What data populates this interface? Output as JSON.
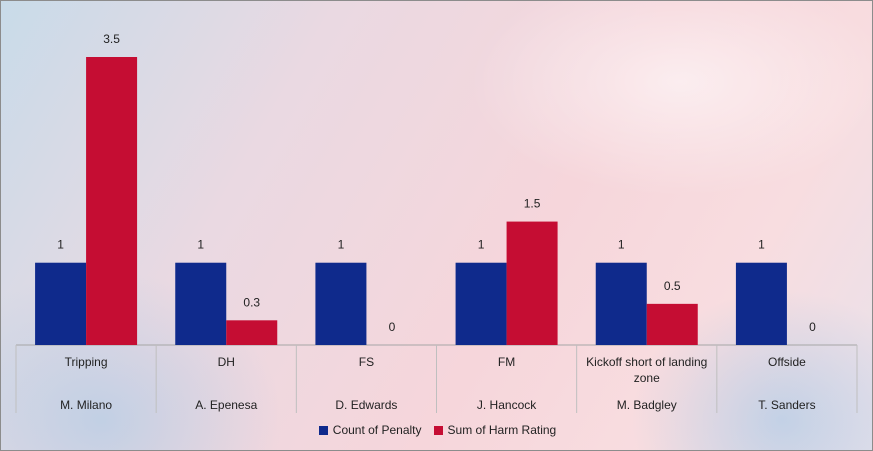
{
  "chart_data": {
    "type": "bar",
    "categories": [
      {
        "penalty": "Tripping",
        "player": "M. Milano"
      },
      {
        "penalty": "DH",
        "player": "A. Epenesa"
      },
      {
        "penalty": "FS",
        "player": "D. Edwards"
      },
      {
        "penalty": "FM",
        "player": "J. Hancock"
      },
      {
        "penalty": "Kickoff short of landing zone",
        "player": "M. Badgley"
      },
      {
        "penalty": "Offside",
        "player": "T. Sanders"
      }
    ],
    "series": [
      {
        "name": "Count of Penalty",
        "values": [
          1,
          1,
          1,
          1,
          1,
          1
        ],
        "color": "#0f2a8c"
      },
      {
        "name": "Sum of Harm Rating",
        "values": [
          3.5,
          0.3,
          0,
          1.5,
          0.5,
          0
        ],
        "color": "#c50d33"
      }
    ],
    "data_labels": [
      [
        "1",
        "1",
        "1",
        "1",
        "1",
        "1"
      ],
      [
        "3.5",
        "0.3",
        "0",
        "1.5",
        "0.5",
        "0"
      ]
    ],
    "ylim": [
      0,
      3.5
    ],
    "grid": false,
    "legend": "bottom"
  }
}
